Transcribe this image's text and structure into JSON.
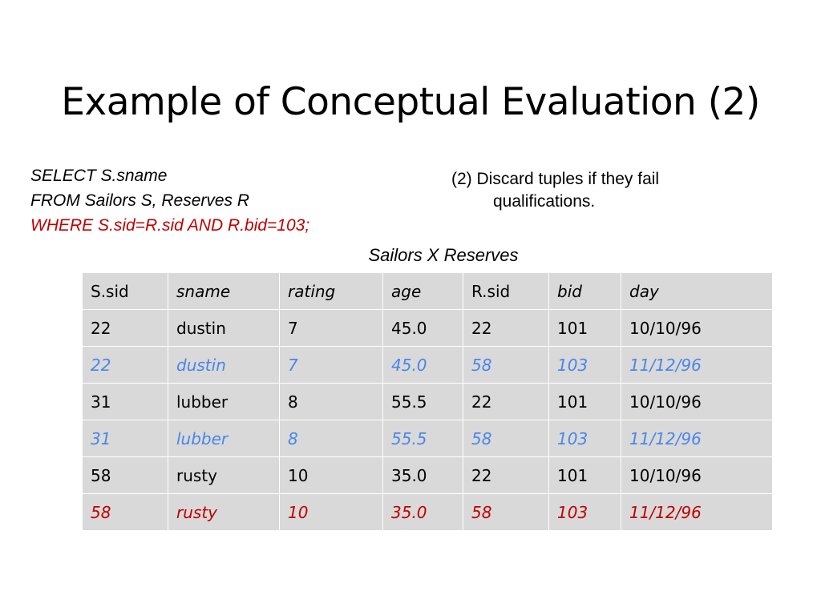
{
  "title": "Example of Conceptual Evaluation (2)",
  "sql": {
    "select": "SELECT S.sname",
    "from": "FROM Sailors S, Reserves R",
    "where": "WHERE S.sid=R.sid AND R.bid=103;"
  },
  "note": {
    "line1": "(2) Discard tuples if they fail",
    "line2": "qualifications."
  },
  "caption": "Sailors  X  Reserves",
  "table": {
    "headers": [
      "S.sid",
      "sname",
      "rating",
      "age",
      "R.sid",
      "bid",
      "day"
    ],
    "rows": [
      {
        "style": "normal",
        "cells": [
          "22",
          "dustin",
          "7",
          "45.0",
          "22",
          "101",
          "10/10/96"
        ]
      },
      {
        "style": "blue",
        "cells": [
          "22",
          "dustin",
          "7",
          "45.0",
          "58",
          "103",
          "11/12/96"
        ]
      },
      {
        "style": "normal",
        "cells": [
          "31",
          "lubber",
          "8",
          "55.5",
          "22",
          "101",
          "10/10/96"
        ]
      },
      {
        "style": "blue",
        "cells": [
          "31",
          "lubber",
          "8",
          "55.5",
          "58",
          "103",
          "11/12/96"
        ]
      },
      {
        "style": "normal",
        "cells": [
          "58",
          "rusty",
          "10",
          "35.0",
          "22",
          "101",
          "10/10/96"
        ]
      },
      {
        "style": "red",
        "cells": [
          "58",
          "rusty",
          "10",
          "35.0",
          "58",
          "103",
          "11/12/96"
        ]
      }
    ]
  },
  "colors": {
    "discarded": "#4a86e8",
    "highlight": "#c00000",
    "cell_bg": "#d9d9d9"
  }
}
